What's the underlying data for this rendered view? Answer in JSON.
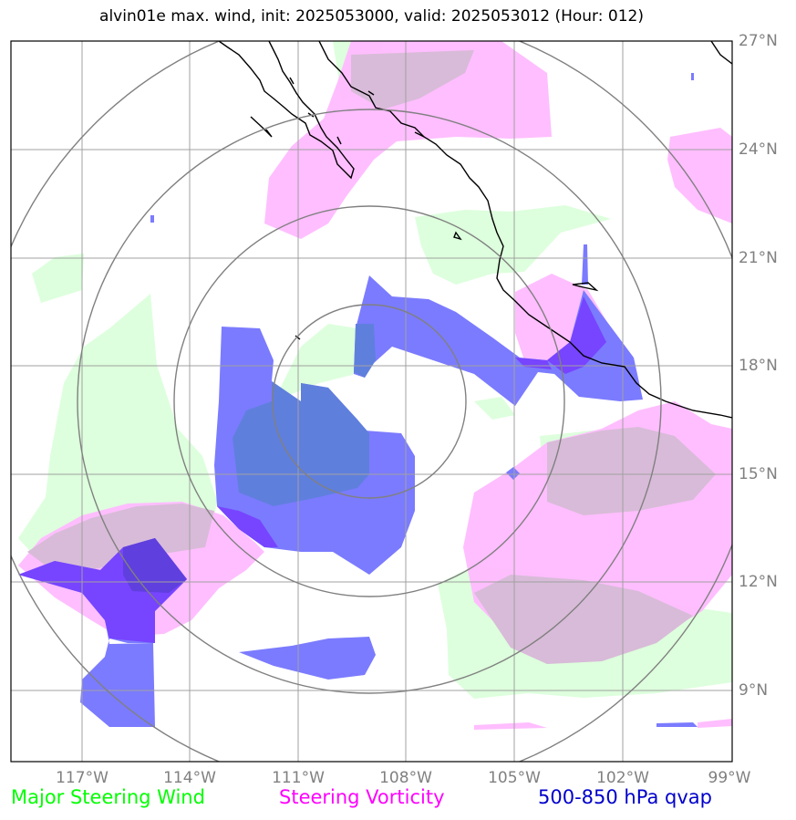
{
  "title": "alvin01e max. wind, init: 2025053000, valid: 2025053012 (Hour: 012)",
  "longitude_labels": [
    "117°W",
    "114°W",
    "111°W",
    "108°W",
    "105°W",
    "102°W",
    "99°W"
  ],
  "latitude_labels": [
    "27°N",
    "24°N",
    "21°N",
    "18°N",
    "15°N",
    "12°N",
    "9°N"
  ],
  "legend": {
    "wind": "Major Steering Wind",
    "vorticity": "Steering Vorticity",
    "qvap": "500-850 hPa qvap"
  },
  "colors": {
    "wind": "#00ff00",
    "vorticity": "#ff00ff",
    "qvap": "#0000cc",
    "wind_fill": "#ddffdd",
    "vorticity_fill": "#ffbbff",
    "qvap_fill": "#7b7bff",
    "grid": "#999999",
    "range_rings": "#808080",
    "coastline": "#000000"
  },
  "map": {
    "lon_range": [
      -119,
      -99
    ],
    "lat_range": [
      7,
      27
    ],
    "center_marker": {
      "lon": -105,
      "lat": 15
    },
    "range_ring_center": {
      "lon": -109,
      "lat": 16.2
    }
  }
}
